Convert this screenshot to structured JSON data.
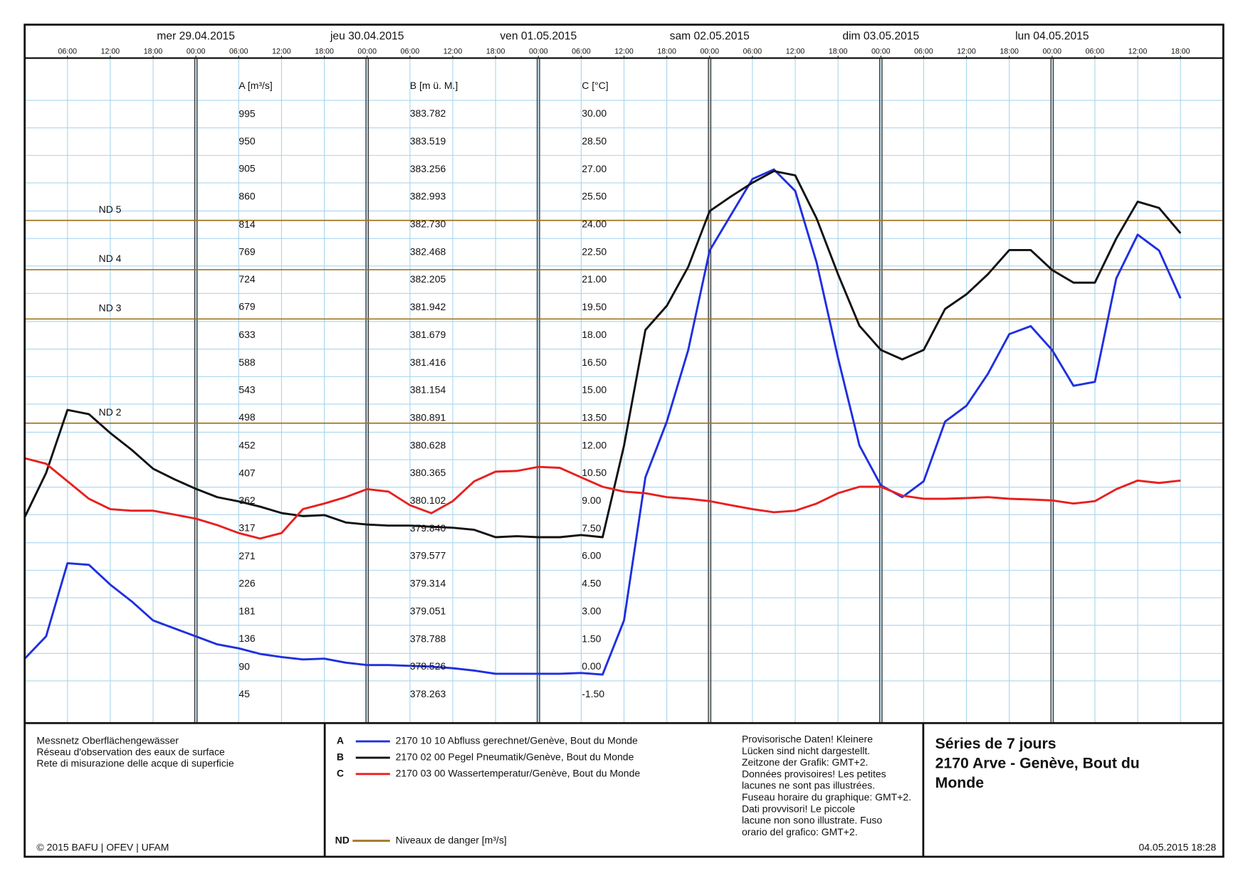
{
  "chart_data": {
    "type": "line",
    "xlim": [
      "2015-04-28 00:00",
      "2015-05-05 00:00"
    ],
    "xticks": [
      {
        "value": "2015-04-28 06:00",
        "label": "06:00"
      },
      {
        "value": "2015-04-28 12:00",
        "label": "12:00"
      },
      {
        "value": "2015-04-28 18:00",
        "label": "18:00"
      },
      {
        "value": "2015-04-29 00:00",
        "label": "00:00"
      },
      {
        "value": "2015-04-29 06:00",
        "label": "06:00"
      },
      {
        "value": "2015-04-29 12:00",
        "label": "12:00"
      },
      {
        "value": "2015-04-29 18:00",
        "label": "18:00"
      },
      {
        "value": "2015-04-30 00:00",
        "label": "00:00"
      },
      {
        "value": "2015-04-30 06:00",
        "label": "06:00"
      },
      {
        "value": "2015-04-30 12:00",
        "label": "12:00"
      },
      {
        "value": "2015-04-30 18:00",
        "label": "18:00"
      },
      {
        "value": "2015-05-01 00:00",
        "label": "00:00"
      },
      {
        "value": "2015-05-01 06:00",
        "label": "06:00"
      },
      {
        "value": "2015-05-01 12:00",
        "label": "12:00"
      },
      {
        "value": "2015-05-01 18:00",
        "label": "18:00"
      },
      {
        "value": "2015-05-02 00:00",
        "label": "00:00"
      },
      {
        "value": "2015-05-02 06:00",
        "label": "06:00"
      },
      {
        "value": "2015-05-02 12:00",
        "label": "12:00"
      },
      {
        "value": "2015-05-02 18:00",
        "label": "18:00"
      },
      {
        "value": "2015-05-03 00:00",
        "label": "00:00"
      },
      {
        "value": "2015-05-03 06:00",
        "label": "06:00"
      },
      {
        "value": "2015-05-03 12:00",
        "label": "12:00"
      },
      {
        "value": "2015-05-03 18:00",
        "label": "18:00"
      },
      {
        "value": "2015-05-04 00:00",
        "label": "00:00"
      },
      {
        "value": "2015-05-04 06:00",
        "label": "06:00"
      },
      {
        "value": "2015-05-04 12:00",
        "label": "12:00"
      },
      {
        "value": "2015-05-04 18:00",
        "label": "18:00"
      }
    ],
    "day_labels": [
      {
        "value": "2015-04-29 00:00",
        "label": "mer 29.04.2015"
      },
      {
        "value": "2015-04-30 00:00",
        "label": "jeu 30.04.2015"
      },
      {
        "value": "2015-05-01 00:00",
        "label": "ven 01.05.2015"
      },
      {
        "value": "2015-05-02 00:00",
        "label": "sam 02.05.2015"
      },
      {
        "value": "2015-05-03 00:00",
        "label": "dim 03.05.2015"
      },
      {
        "value": "2015-05-04 00:00",
        "label": "lun 04.05.2015"
      }
    ],
    "x": [
      "2015-04-28 00:00",
      "2015-04-28 03:00",
      "2015-04-28 06:00",
      "2015-04-28 09:00",
      "2015-04-28 12:00",
      "2015-04-28 15:00",
      "2015-04-28 18:00",
      "2015-04-28 21:00",
      "2015-04-29 00:00",
      "2015-04-29 03:00",
      "2015-04-29 06:00",
      "2015-04-29 09:00",
      "2015-04-29 12:00",
      "2015-04-29 15:00",
      "2015-04-29 18:00",
      "2015-04-29 21:00",
      "2015-04-30 00:00",
      "2015-04-30 03:00",
      "2015-04-30 06:00",
      "2015-04-30 09:00",
      "2015-04-30 12:00",
      "2015-04-30 15:00",
      "2015-04-30 18:00",
      "2015-04-30 21:00",
      "2015-05-01 00:00",
      "2015-05-01 03:00",
      "2015-05-01 06:00",
      "2015-05-01 09:00",
      "2015-05-01 12:00",
      "2015-05-01 15:00",
      "2015-05-01 18:00",
      "2015-05-01 21:00",
      "2015-05-02 00:00",
      "2015-05-02 03:00",
      "2015-05-02 06:00",
      "2015-05-02 09:00",
      "2015-05-02 12:00",
      "2015-05-02 15:00",
      "2015-05-02 18:00",
      "2015-05-02 21:00",
      "2015-05-03 00:00",
      "2015-05-03 03:00",
      "2015-05-03 06:00",
      "2015-05-03 09:00",
      "2015-05-03 12:00",
      "2015-05-03 15:00",
      "2015-05-03 18:00",
      "2015-05-03 21:00",
      "2015-05-04 00:00",
      "2015-05-04 03:00",
      "2015-05-04 06:00",
      "2015-05-04 09:00",
      "2015-05-04 12:00",
      "2015-05-04 15:00",
      "2015-05-04 18:00"
    ],
    "ylabel": "A [m³/s]",
    "ylim": [
      0,
      1085.71
    ],
    "yticks": [
      995,
      950,
      905,
      860,
      814,
      769,
      724,
      679,
      633,
      588,
      543,
      498,
      452,
      407,
      362,
      317,
      271,
      226,
      181,
      136,
      90,
      45
    ],
    "y2label": "B [m ü. M.]",
    "y2lim": [
      378,
      384.3075
    ],
    "y2ticks": [
      383.782,
      383.519,
      383.256,
      382.993,
      {
        "value": 382.73,
        "label": "382.730"
      },
      382.468,
      382.205,
      381.942,
      381.679,
      381.416,
      381.154,
      380.891,
      380.628,
      380.365,
      380.102,
      {
        "value": 379.84,
        "label": "379.840"
      },
      379.577,
      379.314,
      379.051,
      378.788,
      378.526,
      378.263
    ],
    "y3label": "C [°C]",
    "y3lim": [
      -3,
      33
    ],
    "y3ticks": [
      {
        "value": 30,
        "label": "30.00"
      },
      {
        "value": 28.5,
        "label": "28.50"
      },
      {
        "value": 27,
        "label": "27.00"
      },
      {
        "value": 25.5,
        "label": "25.50"
      },
      {
        "value": 24,
        "label": "24.00"
      },
      {
        "value": 22.5,
        "label": "22.50"
      },
      {
        "value": 21,
        "label": "21.00"
      },
      {
        "value": 19.5,
        "label": "19.50"
      },
      {
        "value": 18,
        "label": "18.00"
      },
      {
        "value": 16.5,
        "label": "16.50"
      },
      {
        "value": 15,
        "label": "15.00"
      },
      {
        "value": 13.5,
        "label": "13.50"
      },
      {
        "value": 12,
        "label": "12.00"
      },
      {
        "value": 10.5,
        "label": "10.50"
      },
      {
        "value": 9,
        "label": "9.00"
      },
      {
        "value": 7.5,
        "label": "7.50"
      },
      {
        "value": 6,
        "label": "6.00"
      },
      {
        "value": 4.5,
        "label": "4.50"
      },
      {
        "value": 3,
        "label": "3.00"
      },
      {
        "value": 1.5,
        "label": "1.50"
      },
      {
        "value": 0,
        "label": "0.00"
      },
      {
        "value": -1.5,
        "label": "-1.50"
      }
    ],
    "danger_levels": [
      {
        "label": "ND 5",
        "value": 821.4
      },
      {
        "label": "ND 4",
        "value": 740.7
      },
      {
        "label": "ND 3",
        "value": 660
      },
      {
        "label": "ND 2",
        "value": 489.5
      }
    ],
    "danger_color": "#a27323",
    "danger_legend": {
      "key": "ND",
      "label": "Niveaux de danger [m³/s]"
    },
    "grid": true,
    "series": [
      {
        "key": "A",
        "name": "2170 10 10 Abfluss gerechnet/Genève, Bout du Monde",
        "color": "#1f2fe0",
        "axis": "y",
        "values": [
          104.1,
          140.6,
          260.4,
          257.8,
          225.2,
          197.9,
          166.6,
          153.6,
          140.6,
          127.6,
          121.1,
          112.0,
          106.7,
          102.8,
          104.1,
          97.6,
          93.7,
          93.7,
          92.4,
          91.1,
          88.5,
          84.6,
          79.4,
          79.4,
          79.4,
          79.4,
          80.7,
          78.1,
          166.6,
          401.0,
          492.1,
          609.2,
          772.0,
          830.6,
          889.1,
          904.8,
          869.6,
          752.4,
          596.2,
          453.0,
          387.9,
          368.4,
          394.4,
          492.1,
          518.1,
          570.2,
          635.3,
          648.3,
          609.2,
          550.7,
          557.2,
          726.4,
          798.0,
          772.0,
          693.9
        ]
      },
      {
        "key": "B",
        "name": "2170 02 00 Pegel Pneumatik/Genève, Bout du Monde",
        "color": "#111111",
        "axis": "y2",
        "values": [
          379.95,
          380.37,
          380.97,
          380.93,
          380.75,
          380.59,
          380.41,
          380.31,
          380.22,
          380.14,
          380.1,
          380.05,
          379.99,
          379.96,
          379.97,
          379.9,
          379.88,
          379.87,
          379.87,
          379.86,
          379.85,
          379.83,
          379.76,
          379.77,
          379.76,
          379.76,
          379.78,
          379.76,
          380.63,
          381.73,
          381.96,
          382.33,
          382.86,
          383.0,
          383.13,
          383.24,
          383.2,
          382.79,
          382.26,
          381.77,
          381.54,
          381.45,
          381.54,
          381.93,
          382.07,
          382.26,
          382.49,
          382.49,
          382.3,
          382.18,
          382.18,
          382.6,
          382.95,
          382.89,
          382.65
        ]
      },
      {
        "key": "C",
        "name": "2170 03 00 Wassertemperatur/Genève, Bout du Monde",
        "color": "#e8201f",
        "axis": "y3",
        "values": [
          11.33,
          11.03,
          10.08,
          9.13,
          8.57,
          8.48,
          8.48,
          8.27,
          8.05,
          7.7,
          7.27,
          6.97,
          7.27,
          8.57,
          8.87,
          9.22,
          9.65,
          9.52,
          8.78,
          8.35,
          9.0,
          10.08,
          10.6,
          10.64,
          10.86,
          10.81,
          10.29,
          9.78,
          9.52,
          9.43,
          9.22,
          9.13,
          9.0,
          8.78,
          8.57,
          8.4,
          8.48,
          8.87,
          9.43,
          9.78,
          9.78,
          9.3,
          9.13,
          9.13,
          9.17,
          9.22,
          9.13,
          9.09,
          9.04,
          8.87,
          9.0,
          9.65,
          10.12,
          9.99,
          10.12
        ]
      }
    ]
  },
  "footer": {
    "network": [
      "Messnetz Oberflächengewässer",
      "Réseau d'observation des eaux de surface",
      "Rete di misurazione delle acque di superficie"
    ],
    "copyright": "© 2015 BAFU | OFEV | UFAM",
    "note": [
      "Provisorische Daten! Kleinere",
      "Lücken sind nicht dargestellt.",
      "Zeitzone der Grafik: GMT+2.",
      "Données provisoires! Les petites",
      "lacunes ne sont pas illustrées.",
      "Fuseau horaire du graphique: GMT+2.",
      "Dati provvisori! Le piccole",
      "lacune non sono illustrate. Fuso",
      "orario del grafico: GMT+2."
    ],
    "title": [
      "Séries de 7 jours",
      "2170 Arve - Genève, Bout du",
      "Monde"
    ],
    "timestamp": "04.05.2015 18:28"
  }
}
